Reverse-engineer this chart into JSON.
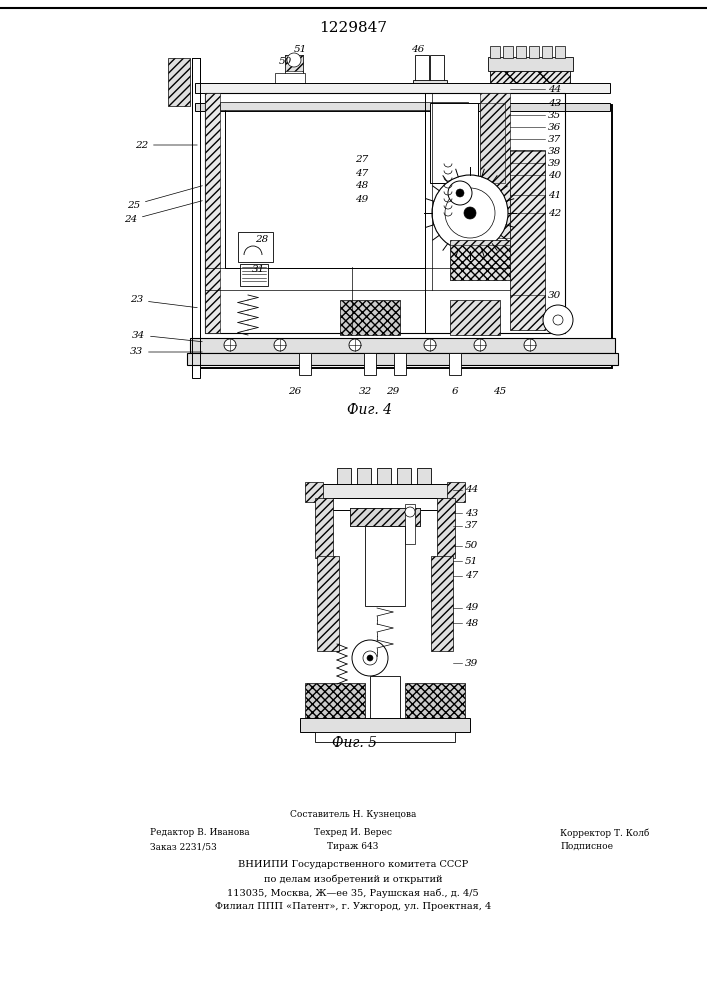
{
  "page_title": "1229847",
  "fig4_caption": "Фиг. 4",
  "fig5_caption": "Фиг. 5",
  "background_color": "#ffffff",
  "lc": "#000000",
  "footer_col1_line1": "Редактор В. Иванова",
  "footer_col1_line2": "Заказ 2231/53",
  "footer_col2_line0": "Составитель Н. Кузнецова",
  "footer_col2_line1": "Техред И. Верес",
  "footer_col2_line2": "Тираж 643",
  "footer_col3_line1": "Корректор Т. Колб",
  "footer_col3_line2": "Подписное",
  "footer_vniip1": "ВНИИПИ Государственного комитета СССР",
  "footer_vniip2": "по делам изобретений и открытий",
  "footer_vniip3": "113035, Москва, Ж—ее 35, Раушская наб., д. 4/5",
  "footer_vniip4": "Филиал ППП «Патент», г. Ужгород, ул. Проектная, 4"
}
